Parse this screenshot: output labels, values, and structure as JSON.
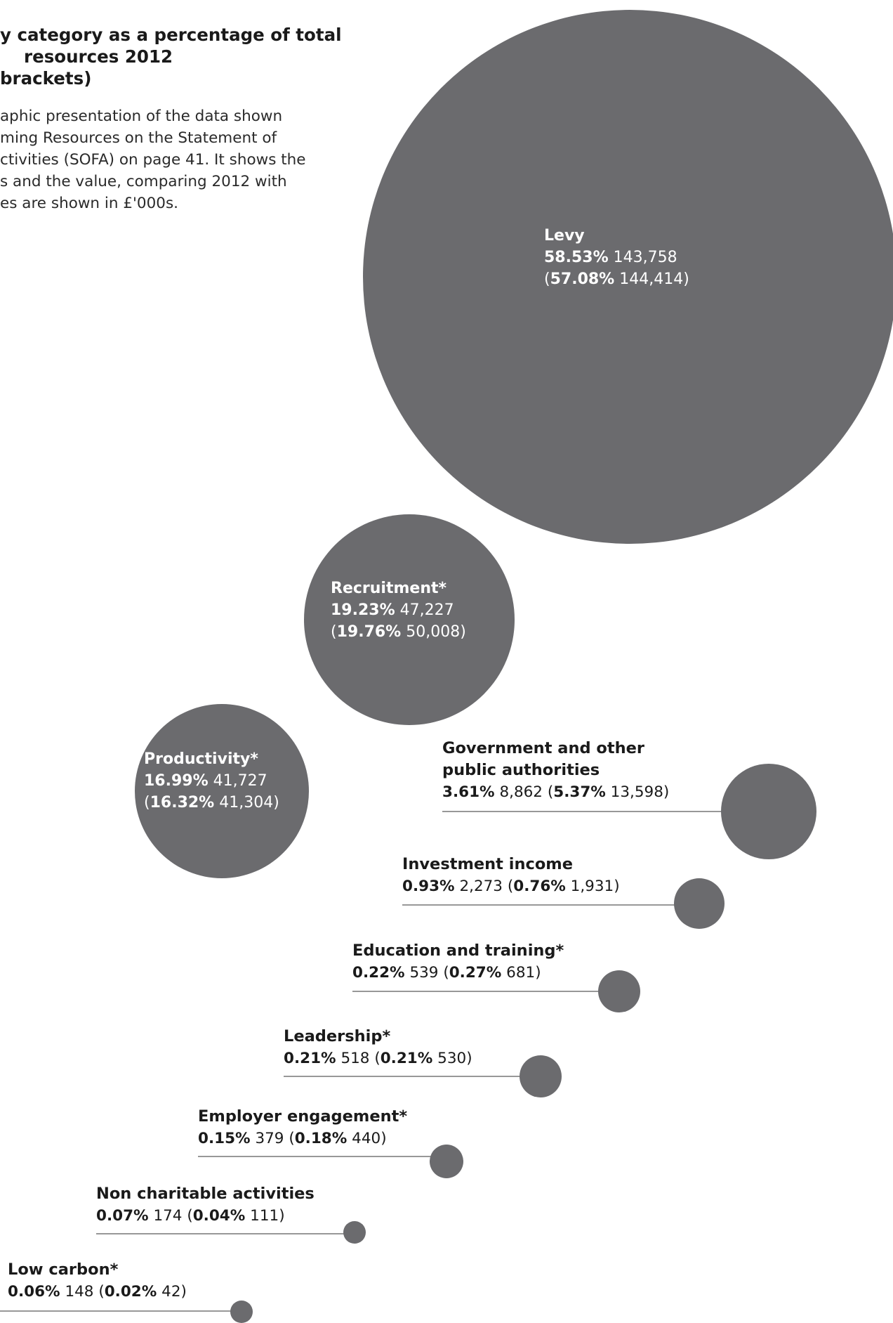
{
  "chart_data": {
    "type": "bubble",
    "title_lines": [
      "y category as a percentage of total",
      "resources 2012",
      "brackets)"
    ],
    "description_lines": [
      "aphic presentation of the data shown",
      "ming Resources on the Statement of",
      "ctivities (SOFA) on page 41. It shows the",
      "s and the value, comparing 2012 with",
      "es are shown in £'000s."
    ],
    "color": "#6b6b6e",
    "line_color": "#777777",
    "categories": [
      {
        "name": "Levy",
        "pct_2012": "58.53%",
        "value_2012": "143,758",
        "pct_prior": "57.08%",
        "value_prior": "144,414"
      },
      {
        "name": "Recruitment*",
        "pct_2012": "19.23%",
        "value_2012": "47,227",
        "pct_prior": "19.76%",
        "value_prior": "50,008"
      },
      {
        "name": "Productivity*",
        "pct_2012": "16.99%",
        "value_2012": "41,727",
        "pct_prior": "16.32%",
        "value_prior": "41,304"
      },
      {
        "name_lines": [
          "Government and other",
          "public authorities"
        ],
        "pct_2012": "3.61%",
        "value_2012": "8,862",
        "pct_prior": "5.37%",
        "value_prior": "13,598"
      },
      {
        "name": "Investment income",
        "pct_2012": "0.93%",
        "value_2012": "2,273",
        "pct_prior": "0.76%",
        "value_prior": "1,931"
      },
      {
        "name": "Education and training*",
        "pct_2012": "0.22%",
        "value_2012": "539",
        "pct_prior": "0.27%",
        "value_prior": "681"
      },
      {
        "name": "Leadership*",
        "pct_2012": "0.21%",
        "value_2012": "518",
        "pct_prior": "0.21%",
        "value_prior": "530"
      },
      {
        "name": "Employer engagement*",
        "pct_2012": "0.15%",
        "value_2012": "379",
        "pct_prior": "0.18%",
        "value_prior": "440"
      },
      {
        "name": "Non charitable activities",
        "pct_2012": "0.07%",
        "value_2012": "174",
        "pct_prior": "0.04%",
        "value_prior": "111"
      },
      {
        "name": "Low carbon*",
        "pct_2012": "0.06%",
        "value_2012": "148",
        "pct_prior": "0.02%",
        "value_prior": "42"
      }
    ]
  }
}
